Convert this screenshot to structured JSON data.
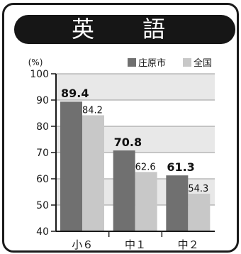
{
  "title": "英　語",
  "colors": {
    "shobara": "#707070",
    "national": "#c8c8c8",
    "band": "#e8e8e8",
    "frame": "#1a1a1a"
  },
  "chart_data": {
    "type": "bar",
    "title": "英　語",
    "ylabel": "(%)",
    "xlabel": "",
    "categories": [
      "小６",
      "中１",
      "中２"
    ],
    "series": [
      {
        "name": "庄原市",
        "values": [
          89.4,
          70.8,
          61.3
        ]
      },
      {
        "name": "全国",
        "values": [
          84.2,
          62.6,
          54.3
        ]
      }
    ],
    "ylim": [
      40,
      100
    ],
    "yticks": [
      40,
      50,
      60,
      70,
      80,
      90,
      100
    ],
    "value_labels": [
      [
        "89.4",
        "70.8",
        "61.3"
      ],
      [
        "84.2",
        "62.6",
        "54.3"
      ]
    ],
    "legend_position": "top-right",
    "grid": true
  }
}
